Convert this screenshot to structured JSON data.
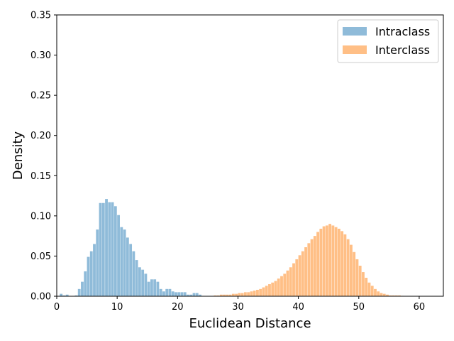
{
  "chart_data": {
    "type": "bar",
    "title": "",
    "xlabel": "Euclidean Distance",
    "ylabel": "Density",
    "xlim": [
      0,
      64
    ],
    "ylim": [
      0,
      0.35
    ],
    "xticks": [
      "0",
      "10",
      "20",
      "30",
      "40",
      "50",
      "60"
    ],
    "yticks": [
      "0.00",
      "0.05",
      "0.10",
      "0.15",
      "0.20",
      "0.25",
      "0.30",
      "0.35"
    ],
    "grid": false,
    "legend_position": "top-right",
    "series": [
      {
        "name": "Intraclass",
        "color": "#1f77b4",
        "opacity": 0.5,
        "bin_width": 0.5,
        "x": [
          0.75,
          1.25,
          1.75,
          3.25,
          3.75,
          4.25,
          4.75,
          5.25,
          5.75,
          6.25,
          6.75,
          7.25,
          7.75,
          8.25,
          8.75,
          9.25,
          9.75,
          10.25,
          10.75,
          11.25,
          11.75,
          12.25,
          12.75,
          13.25,
          13.75,
          14.25,
          14.75,
          15.25,
          15.75,
          16.25,
          16.75,
          17.25,
          17.75,
          18.25,
          18.75,
          19.25,
          19.75,
          20.25,
          20.75,
          21.25,
          21.75,
          22.25,
          22.75,
          23.25,
          23.75
        ],
        "values": [
          0.003,
          0.001,
          0.002,
          0.001,
          0.009,
          0.018,
          0.031,
          0.049,
          0.056,
          0.065,
          0.083,
          0.116,
          0.116,
          0.121,
          0.117,
          0.117,
          0.112,
          0.101,
          0.086,
          0.083,
          0.073,
          0.065,
          0.056,
          0.045,
          0.036,
          0.033,
          0.028,
          0.018,
          0.021,
          0.021,
          0.018,
          0.009,
          0.006,
          0.009,
          0.009,
          0.006,
          0.005,
          0.005,
          0.005,
          0.005,
          0.002,
          0.002,
          0.004,
          0.004,
          0.002
        ]
      },
      {
        "name": "Interclass",
        "color": "#ff7f0e",
        "opacity": 0.5,
        "bin_width": 0.5,
        "x": [
          26.25,
          26.75,
          27.25,
          27.75,
          28.25,
          28.75,
          29.25,
          29.75,
          30.25,
          30.75,
          31.25,
          31.75,
          32.25,
          32.75,
          33.25,
          33.75,
          34.25,
          34.75,
          35.25,
          35.75,
          36.25,
          36.75,
          37.25,
          37.75,
          38.25,
          38.75,
          39.25,
          39.75,
          40.25,
          40.75,
          41.25,
          41.75,
          42.25,
          42.75,
          43.25,
          43.75,
          44.25,
          44.75,
          45.25,
          45.75,
          46.25,
          46.75,
          47.25,
          47.75,
          48.25,
          48.75,
          49.25,
          49.75,
          50.25,
          50.75,
          51.25,
          51.75,
          52.25,
          52.75,
          53.25,
          53.75,
          54.25,
          54.75,
          55.25,
          55.75,
          56.25,
          56.75,
          57.25,
          57.75
        ],
        "values": [
          0.001,
          0.001,
          0.002,
          0.002,
          0.002,
          0.002,
          0.003,
          0.003,
          0.004,
          0.004,
          0.005,
          0.005,
          0.006,
          0.007,
          0.008,
          0.009,
          0.011,
          0.013,
          0.015,
          0.017,
          0.019,
          0.022,
          0.025,
          0.028,
          0.032,
          0.036,
          0.041,
          0.046,
          0.051,
          0.056,
          0.061,
          0.066,
          0.071,
          0.075,
          0.08,
          0.084,
          0.087,
          0.088,
          0.09,
          0.088,
          0.086,
          0.084,
          0.081,
          0.077,
          0.071,
          0.064,
          0.055,
          0.046,
          0.038,
          0.03,
          0.023,
          0.017,
          0.013,
          0.009,
          0.006,
          0.004,
          0.003,
          0.002,
          0.001,
          0.001,
          0.001,
          0.001,
          0.0005,
          0.0003
        ]
      }
    ]
  }
}
